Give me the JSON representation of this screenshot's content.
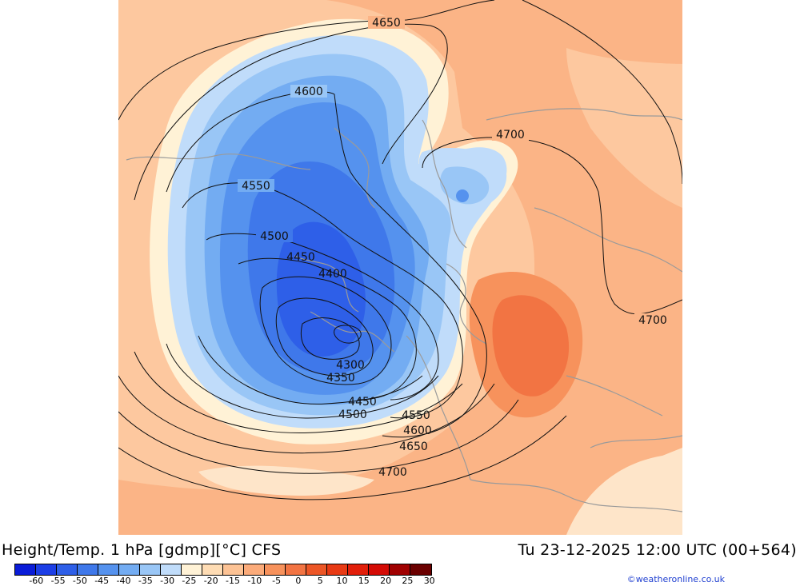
{
  "title": "Height/Temp. 1 hPa [gdmp][°C] CFS",
  "valid_time": "Tu 23-12-2025 12:00 UTC (00+564)",
  "credit": "©weatheronline.co.uk",
  "legend": {
    "colors": [
      "#0a1cd8",
      "#1c3ee6",
      "#2e5fe8",
      "#3f78ea",
      "#5592ee",
      "#73acf2",
      "#99c6f6",
      "#c0dcfa",
      "#fff2d6",
      "#fedcb4",
      "#fdc395",
      "#fbab7a",
      "#f7925c",
      "#f27443",
      "#ec5626",
      "#e83a14",
      "#e21f0a",
      "#d40b05",
      "#a00000",
      "#6b0000"
    ],
    "ticks": [
      "-60",
      "-55",
      "-50",
      "-45",
      "-40",
      "-35",
      "-30",
      "-25",
      "-20",
      "-15",
      "-10",
      "-5",
      "0",
      "5",
      "10",
      "15",
      "20",
      "25",
      "30"
    ]
  },
  "contour_labels": [
    {
      "id": "l4650top",
      "text": "4650"
    },
    {
      "id": "l4600top",
      "text": "4600"
    },
    {
      "id": "l4700ne",
      "text": "4700"
    },
    {
      "id": "l4550w",
      "text": "4550"
    },
    {
      "id": "l4500w",
      "text": "4500"
    },
    {
      "id": "l4450w",
      "text": "4450"
    },
    {
      "id": "l4400",
      "text": "4400"
    },
    {
      "id": "l4300",
      "text": "4300"
    },
    {
      "id": "l4350",
      "text": "4350"
    },
    {
      "id": "l4450s",
      "text": "4450"
    },
    {
      "id": "l4500s",
      "text": "4500"
    },
    {
      "id": "l4550s",
      "text": "4550"
    },
    {
      "id": "l4600s",
      "text": "4600"
    },
    {
      "id": "l4650s",
      "text": "4650"
    },
    {
      "id": "l4700s",
      "text": "4700"
    },
    {
      "id": "l4700e",
      "text": "4700"
    }
  ]
}
